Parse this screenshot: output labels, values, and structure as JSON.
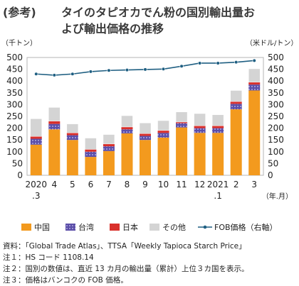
{
  "title": {
    "prefix": "(参考)",
    "line1": "タイのタピオカでん粉の国別輸出量お",
    "line2": "よび輸出価格の推移"
  },
  "notes": [
    "資料：「Global Trade Atlas」、TTSA「Weekly Tapioca Starch Price」",
    "注１：HS コード 1108.14",
    "注２：国別の数値は、直近 13 カ月の輸出量（累計）上位３カ国を表示。",
    "注３：価格はバンコクの FOB 価格。"
  ],
  "colors": {
    "china": "#f39a1e",
    "taiwan": "#5b4ea8",
    "taiwan_dots": "#c9c4ee",
    "japan": "#d9302b",
    "other": "#d4d4d4",
    "fob": "#1f5f82"
  },
  "chart_data": {
    "type": "bar",
    "stacked": true,
    "categories": [
      "2020\n.3",
      "4",
      "5",
      "6",
      "7",
      "8",
      "9",
      "10",
      "11",
      "12",
      "2021\n.1",
      "2",
      "3"
    ],
    "xunit": "（年.月）",
    "ylabel": "（千トン）",
    "y2label": "（米ドル/トン）",
    "ylim": [
      0,
      500
    ],
    "yticks": [
      0,
      50,
      100,
      150,
      200,
      250,
      300,
      350,
      400,
      450,
      500
    ],
    "y2lim": [
      0,
      500
    ],
    "y2ticks": [
      0,
      50,
      100,
      150,
      200,
      250,
      300,
      350,
      400,
      450,
      500
    ],
    "grid": false,
    "legend_position": "bottom",
    "series": [
      {
        "name": "中国",
        "key": "china",
        "values": [
          130,
          195,
          150,
          78,
          103,
          178,
          150,
          160,
          203,
          180,
          180,
          280,
          360
        ]
      },
      {
        "name": "台湾",
        "key": "taiwan",
        "values": [
          25,
          23,
          20,
          22,
          20,
          17,
          17,
          20,
          18,
          20,
          20,
          23,
          25
        ]
      },
      {
        "name": "日本",
        "key": "japan",
        "values": [
          10,
          12,
          10,
          10,
          10,
          10,
          10,
          10,
          5,
          10,
          10,
          10,
          10
        ]
      },
      {
        "name": "その他",
        "key": "other",
        "values": [
          75,
          58,
          38,
          48,
          40,
          48,
          45,
          42,
          43,
          52,
          47,
          47,
          57
        ]
      }
    ],
    "line_series": {
      "name": "FOB価格（右軸）",
      "values": [
        430,
        425,
        430,
        440,
        445,
        447,
        449,
        451,
        463,
        476,
        476,
        480,
        487
      ]
    }
  }
}
